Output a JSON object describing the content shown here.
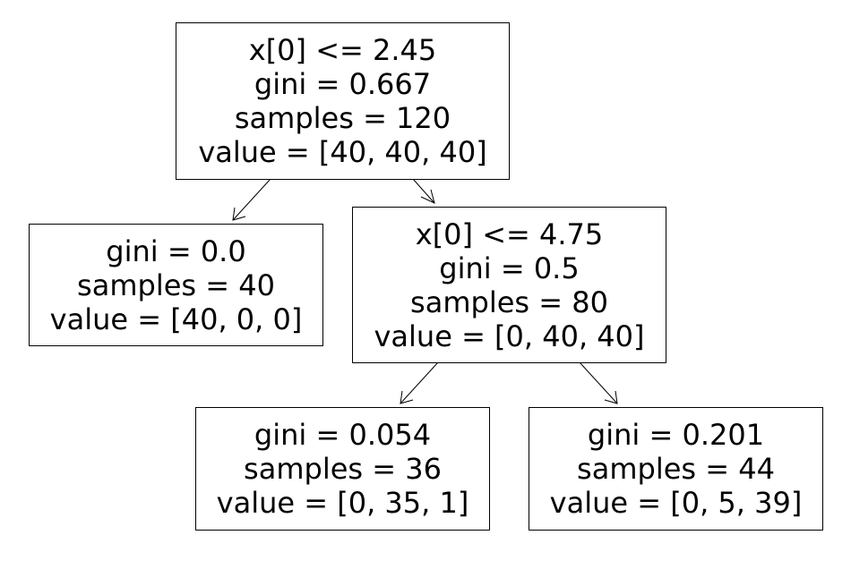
{
  "tree": {
    "root": {
      "split": "x[0] <= 2.45",
      "gini": "gini = 0.667",
      "samples": "samples = 120",
      "value": "value = [40, 40, 40]"
    },
    "left_leaf": {
      "gini": "gini = 0.0",
      "samples": "samples = 40",
      "value": "value = [40, 0, 0]"
    },
    "right_node": {
      "split": "x[0] <= 4.75",
      "gini": "gini = 0.5",
      "samples": "samples = 80",
      "value": "value = [0, 40, 40]"
    },
    "right_left_leaf": {
      "gini": "gini = 0.054",
      "samples": "samples = 36",
      "value": "value = [0, 35, 1]"
    },
    "right_right_leaf": {
      "gini": "gini = 0.201",
      "samples": "samples = 44",
      "value": "value = [0, 5, 39]"
    }
  },
  "colors": {
    "node_fill": "#ffffff",
    "edge": "#000000"
  }
}
